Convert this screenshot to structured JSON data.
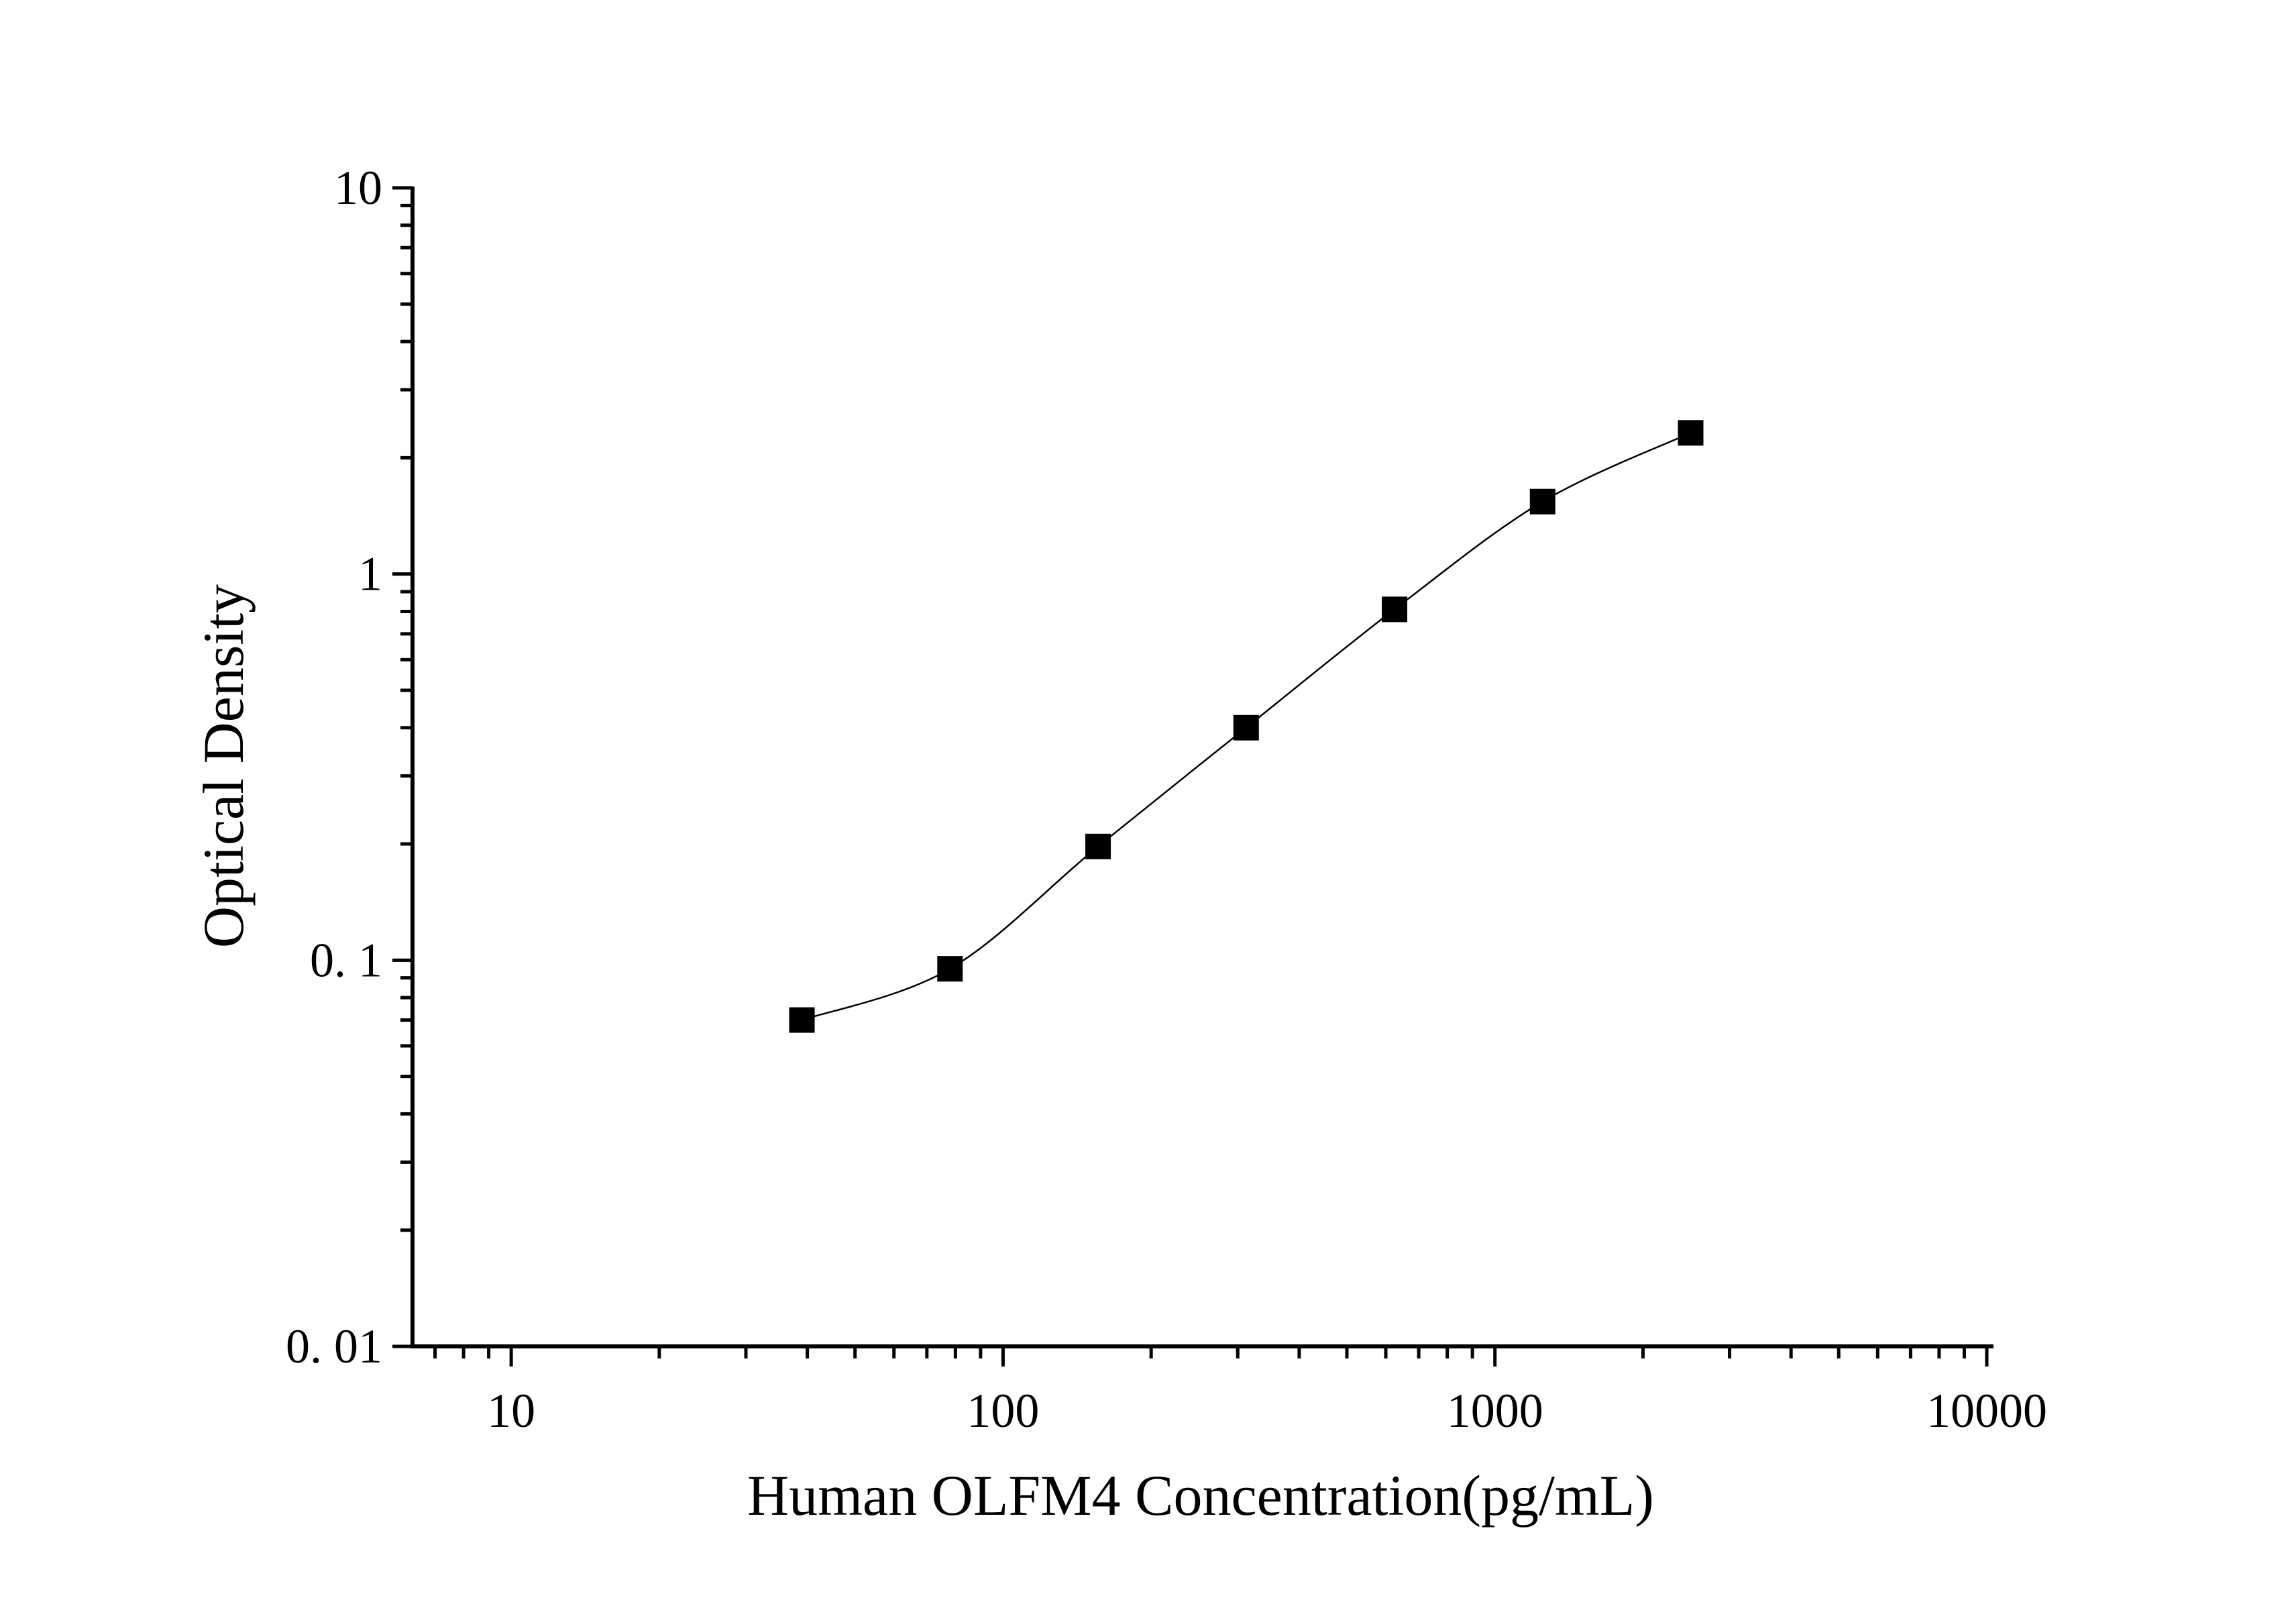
{
  "chart_data": {
    "type": "scatter",
    "title": "",
    "xlabel": "Human OLFM4 Concentration(pg/mL)",
    "ylabel": "Optical Density",
    "xscale": "log",
    "yscale": "log",
    "xlim": [
      6.3,
      10000
    ],
    "ylim": [
      0.01,
      10
    ],
    "x_ticks": [
      10,
      100,
      1000,
      10000
    ],
    "x_tick_labels": [
      "10",
      "100",
      "1000",
      "10000"
    ],
    "y_ticks": [
      0.01,
      0.1,
      1,
      10
    ],
    "y_tick_labels": [
      "0. 01",
      "0. 1",
      "1",
      "10"
    ],
    "grid": false,
    "legend": "none",
    "series": [
      {
        "x": [
          39,
          78,
          156,
          312,
          625,
          1250,
          2500
        ],
        "y": [
          0.07,
          0.095,
          0.197,
          0.4,
          0.81,
          1.54,
          2.32
        ],
        "marker": "square",
        "fit": "four-parameter logistic curve"
      }
    ],
    "colors": {
      "marker": "#000000",
      "curve": "#000000",
      "axis": "#000000"
    }
  }
}
